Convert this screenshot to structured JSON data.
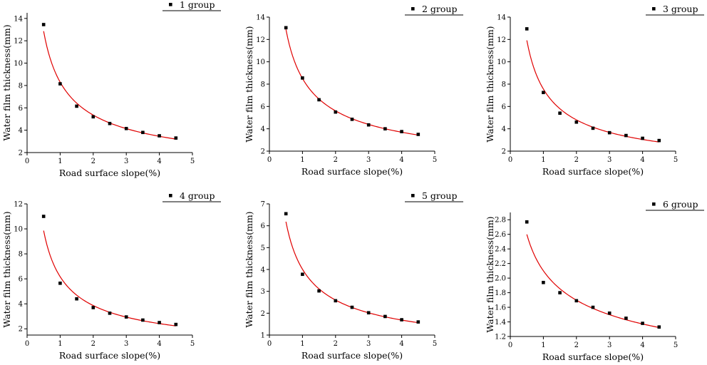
{
  "chart_data": [
    {
      "type": "scatter",
      "legend": "1 group",
      "xlabel": "Road surface slope(%)",
      "ylabel": "Water film thickness(mm)",
      "xlim": [
        0,
        5
      ],
      "ylim": [
        2,
        14.5
      ],
      "xticks": [
        0,
        1,
        2,
        3,
        4,
        5
      ],
      "yticks": [
        2,
        4,
        6,
        8,
        10,
        12,
        14
      ],
      "x": [
        0.5,
        1.0,
        1.5,
        2.0,
        2.5,
        3.0,
        3.5,
        4.0,
        4.5
      ],
      "y": [
        13.45,
        8.15,
        6.15,
        5.2,
        4.6,
        4.15,
        3.8,
        3.5,
        3.3
      ],
      "legend_position": "top-right",
      "marker_color": "#000000",
      "fit_color": "#e00000"
    },
    {
      "type": "scatter",
      "legend": "2 group",
      "xlabel": "Road surface slope(%)",
      "ylabel": "Water film thickness(mm)",
      "xlim": [
        0,
        5
      ],
      "ylim": [
        2,
        14
      ],
      "xticks": [
        0,
        1,
        2,
        3,
        4,
        5
      ],
      "yticks": [
        2,
        4,
        6,
        8,
        10,
        12,
        14
      ],
      "x": [
        0.5,
        1.0,
        1.5,
        2.0,
        2.5,
        3.0,
        3.5,
        4.0,
        4.5
      ],
      "y": [
        13.05,
        8.55,
        6.6,
        5.5,
        4.85,
        4.35,
        4.0,
        3.75,
        3.5
      ],
      "legend_position": "top-right",
      "marker_color": "#000000",
      "fit_color": "#e00000"
    },
    {
      "type": "scatter",
      "legend": "3 group",
      "xlabel": "Road surface slope(%)",
      "ylabel": "Water film thickness(mm)",
      "xlim": [
        0,
        5
      ],
      "ylim": [
        2,
        14
      ],
      "xticks": [
        0,
        1,
        2,
        3,
        4,
        5
      ],
      "yticks": [
        2,
        4,
        6,
        8,
        10,
        12,
        14
      ],
      "x": [
        0.5,
        1.0,
        1.5,
        2.0,
        2.5,
        3.0,
        3.5,
        4.0,
        4.5
      ],
      "y": [
        12.95,
        7.25,
        5.4,
        4.6,
        4.05,
        3.65,
        3.4,
        3.15,
        2.95
      ],
      "legend_position": "top-right",
      "marker_color": "#000000",
      "fit_color": "#e00000"
    },
    {
      "type": "scatter",
      "legend": "4 group",
      "xlabel": "Road surface slope(%)",
      "ylabel": "Water film thickness(mm)",
      "xlim": [
        0,
        5
      ],
      "ylim": [
        1.5,
        12
      ],
      "xticks": [
        0,
        1,
        2,
        3,
        4,
        5
      ],
      "yticks": [
        2,
        4,
        6,
        8,
        10,
        12
      ],
      "x": [
        0.5,
        1.0,
        1.5,
        2.0,
        2.5,
        3.0,
        3.5,
        4.0,
        4.5
      ],
      "y": [
        11.0,
        5.65,
        4.4,
        3.7,
        3.25,
        2.95,
        2.7,
        2.5,
        2.35
      ],
      "legend_position": "top-right",
      "marker_color": "#000000",
      "fit_color": "#e00000"
    },
    {
      "type": "scatter",
      "legend": "5 group",
      "xlabel": "Road surface slope(%)",
      "ylabel": "Water film thickness(mm)",
      "xlim": [
        0,
        5
      ],
      "ylim": [
        1,
        7
      ],
      "xticks": [
        0,
        1,
        2,
        3,
        4,
        5
      ],
      "yticks": [
        1,
        2,
        3,
        4,
        5,
        6,
        7
      ],
      "x": [
        0.5,
        1.0,
        1.5,
        2.0,
        2.5,
        3.0,
        3.5,
        4.0,
        4.5
      ],
      "y": [
        6.55,
        3.78,
        3.02,
        2.57,
        2.27,
        2.02,
        1.85,
        1.7,
        1.6
      ],
      "legend_position": "top-right",
      "marker_color": "#000000",
      "fit_color": "#e00000"
    },
    {
      "type": "scatter",
      "legend": "6 group",
      "xlabel": "Road surface slope(%)",
      "ylabel": "Water film thickness(mm)",
      "xlim": [
        0,
        5
      ],
      "ylim": [
        1.2,
        2.9
      ],
      "xticks": [
        0,
        1,
        2,
        3,
        4,
        5
      ],
      "yticks": [
        1.2,
        1.4,
        1.6,
        1.8,
        2.0,
        2.2,
        2.4,
        2.6,
        2.8
      ],
      "ytick_labels": [
        "1.2",
        "1.4",
        "1.6",
        "1.8",
        "2.0",
        "2.2",
        "2.4",
        "2.6",
        "2.8"
      ],
      "x": [
        0.5,
        1.0,
        1.5,
        2.0,
        2.5,
        3.0,
        3.5,
        4.0,
        4.5
      ],
      "y": [
        2.77,
        1.94,
        1.8,
        1.69,
        1.6,
        1.52,
        1.45,
        1.38,
        1.33
      ],
      "legend_position": "top-right",
      "marker_color": "#000000",
      "fit_color": "#e00000"
    }
  ]
}
